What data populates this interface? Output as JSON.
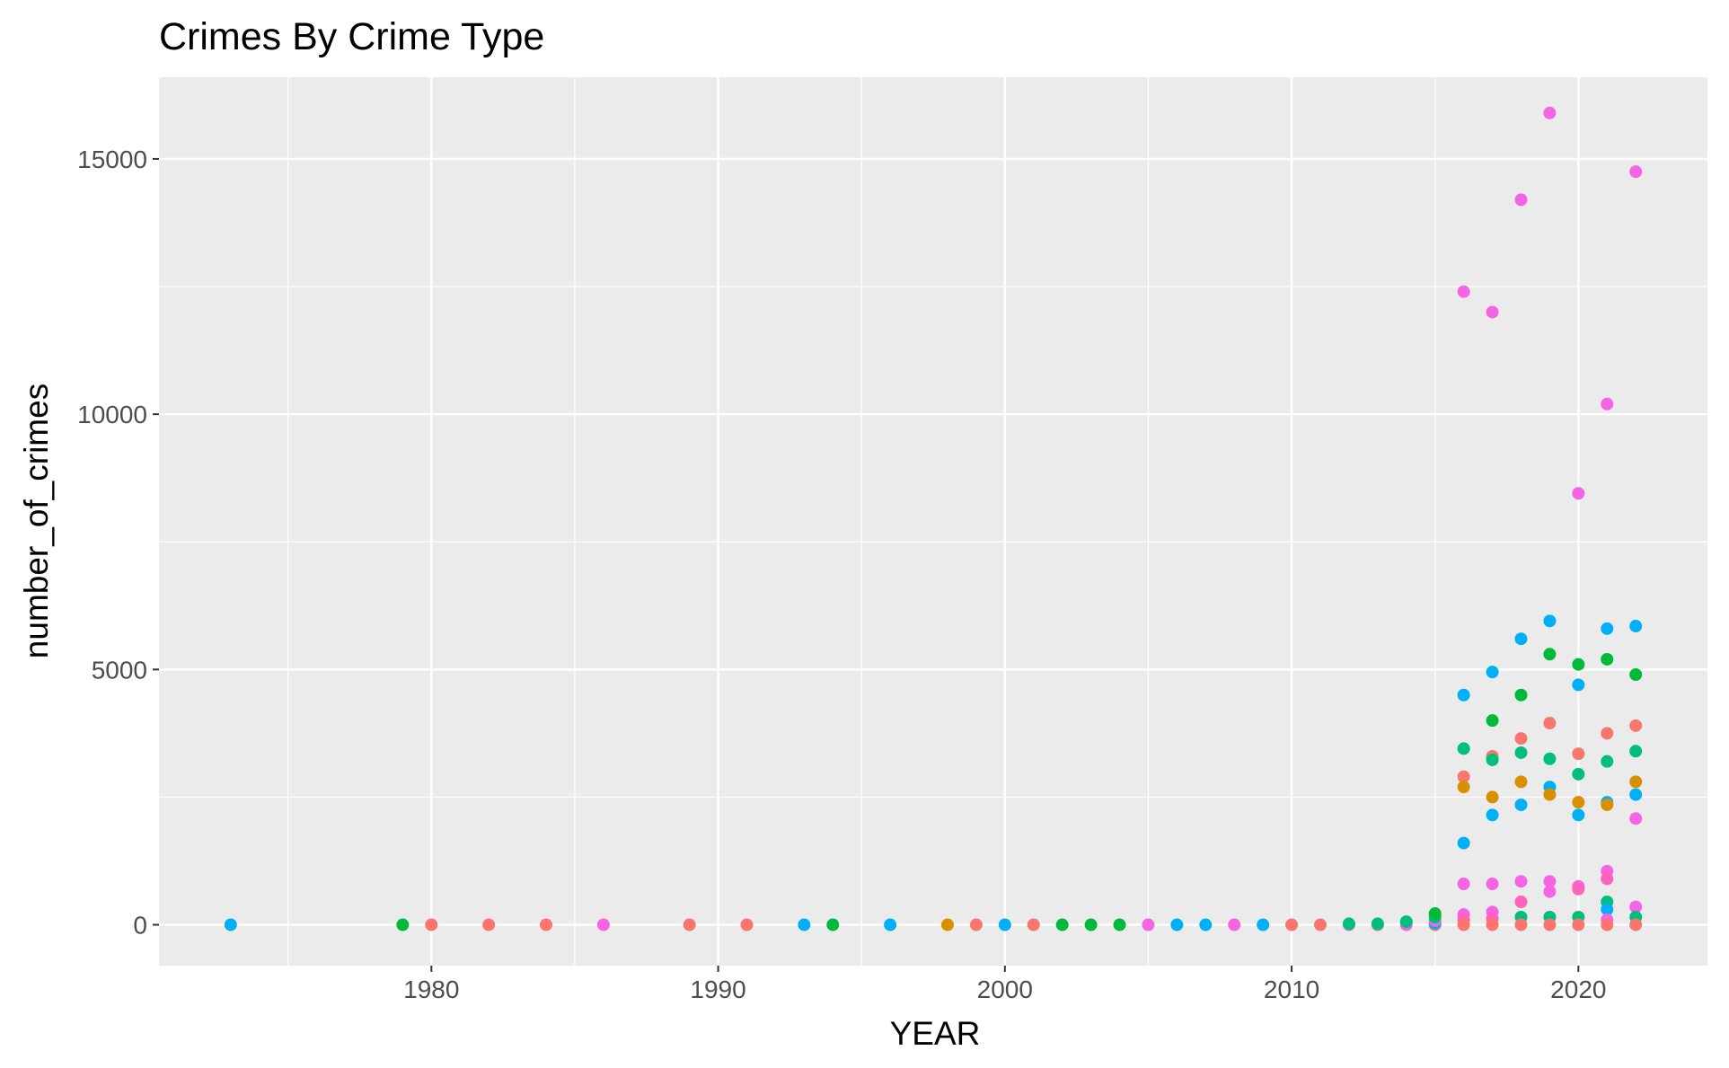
{
  "chart_data": {
    "type": "scatter",
    "title": "Crimes By Crime Type",
    "xlabel": "YEAR",
    "ylabel": "number_of_crimes",
    "xlim": [
      1970.5,
      2024.5
    ],
    "ylim": [
      -800,
      16600
    ],
    "x_ticks": [
      1980,
      1990,
      2000,
      2010,
      2020
    ],
    "y_ticks": [
      0,
      5000,
      10000,
      15000
    ],
    "grid": true,
    "legend": "none",
    "colors": {
      "panel": "#EBEBEB",
      "grid": "#FFFFFF",
      "c1": "#F8766D",
      "c2": "#D89000",
      "c3": "#00BA38",
      "c4": "#00BF7D",
      "c5": "#00B0F6",
      "c6": "#F564E3",
      "c7": "#FF62BC",
      "c8": "#E76BF3"
    },
    "points": [
      {
        "x": 1973,
        "y": 0,
        "color": "#00B0F6"
      },
      {
        "x": 1979,
        "y": 0,
        "color": "#00BA38"
      },
      {
        "x": 1980,
        "y": 0,
        "color": "#F8766D"
      },
      {
        "x": 1982,
        "y": 0,
        "color": "#F8766D"
      },
      {
        "x": 1984,
        "y": 0,
        "color": "#F8766D"
      },
      {
        "x": 1986,
        "y": 0,
        "color": "#F564E3"
      },
      {
        "x": 1989,
        "y": 0,
        "color": "#F8766D"
      },
      {
        "x": 1991,
        "y": 0,
        "color": "#F8766D"
      },
      {
        "x": 1993,
        "y": 0,
        "color": "#00B0F6"
      },
      {
        "x": 1994,
        "y": 0,
        "color": "#00BA38"
      },
      {
        "x": 1996,
        "y": 0,
        "color": "#00B0F6"
      },
      {
        "x": 1998,
        "y": 0,
        "color": "#D89000"
      },
      {
        "x": 1999,
        "y": 0,
        "color": "#F8766D"
      },
      {
        "x": 2000,
        "y": 0,
        "color": "#00B0F6"
      },
      {
        "x": 2001,
        "y": 0,
        "color": "#F8766D"
      },
      {
        "x": 2002,
        "y": 0,
        "color": "#00BA38"
      },
      {
        "x": 2003,
        "y": 0,
        "color": "#00BA38"
      },
      {
        "x": 2004,
        "y": 0,
        "color": "#00BA38"
      },
      {
        "x": 2005,
        "y": 0,
        "color": "#F564E3"
      },
      {
        "x": 2006,
        "y": 0,
        "color": "#00B0F6"
      },
      {
        "x": 2007,
        "y": 0,
        "color": "#00B0F6"
      },
      {
        "x": 2008,
        "y": 0,
        "color": "#F564E3"
      },
      {
        "x": 2009,
        "y": 0,
        "color": "#00B0F6"
      },
      {
        "x": 2010,
        "y": 0,
        "color": "#F8766D"
      },
      {
        "x": 2011,
        "y": 0,
        "color": "#F8766D"
      },
      {
        "x": 2012,
        "y": 0,
        "color": "#F564E3"
      },
      {
        "x": 2012,
        "y": 20,
        "color": "#00BF7D"
      },
      {
        "x": 2013,
        "y": 0,
        "color": "#F8766D"
      },
      {
        "x": 2013,
        "y": 20,
        "color": "#00BF7D"
      },
      {
        "x": 2014,
        "y": 0,
        "color": "#F564E3"
      },
      {
        "x": 2014,
        "y": 60,
        "color": "#00BF7D"
      },
      {
        "x": 2015,
        "y": 0,
        "color": "#F8766D"
      },
      {
        "x": 2015,
        "y": 30,
        "color": "#00B0F6"
      },
      {
        "x": 2015,
        "y": 80,
        "color": "#F564E3"
      },
      {
        "x": 2015,
        "y": 150,
        "color": "#00BF7D"
      },
      {
        "x": 2015,
        "y": 220,
        "color": "#00BA38"
      },
      {
        "x": 2016,
        "y": 12400,
        "color": "#F564E3"
      },
      {
        "x": 2016,
        "y": 4500,
        "color": "#00B0F6"
      },
      {
        "x": 2016,
        "y": 3450,
        "color": "#00BF7D"
      },
      {
        "x": 2016,
        "y": 2900,
        "color": "#F8766D"
      },
      {
        "x": 2016,
        "y": 2700,
        "color": "#D89000"
      },
      {
        "x": 2016,
        "y": 1600,
        "color": "#00B0F6"
      },
      {
        "x": 2016,
        "y": 800,
        "color": "#F564E3"
      },
      {
        "x": 2016,
        "y": 200,
        "color": "#F564E3"
      },
      {
        "x": 2016,
        "y": 100,
        "color": "#FF62BC"
      },
      {
        "x": 2016,
        "y": 0,
        "color": "#F8766D"
      },
      {
        "x": 2017,
        "y": 12000,
        "color": "#F564E3"
      },
      {
        "x": 2017,
        "y": 4950,
        "color": "#00B0F6"
      },
      {
        "x": 2017,
        "y": 4000,
        "color": "#00BA38"
      },
      {
        "x": 2017,
        "y": 3300,
        "color": "#F8766D"
      },
      {
        "x": 2017,
        "y": 3230,
        "color": "#00BF7D"
      },
      {
        "x": 2017,
        "y": 2500,
        "color": "#D89000"
      },
      {
        "x": 2017,
        "y": 2150,
        "color": "#00B0F6"
      },
      {
        "x": 2017,
        "y": 800,
        "color": "#F564E3"
      },
      {
        "x": 2017,
        "y": 250,
        "color": "#F564E3"
      },
      {
        "x": 2017,
        "y": 120,
        "color": "#FF62BC"
      },
      {
        "x": 2017,
        "y": 0,
        "color": "#F8766D"
      },
      {
        "x": 2018,
        "y": 14200,
        "color": "#F564E3"
      },
      {
        "x": 2018,
        "y": 5600,
        "color": "#00B0F6"
      },
      {
        "x": 2018,
        "y": 4500,
        "color": "#00BA38"
      },
      {
        "x": 2018,
        "y": 3650,
        "color": "#F8766D"
      },
      {
        "x": 2018,
        "y": 3370,
        "color": "#00BF7D"
      },
      {
        "x": 2018,
        "y": 2800,
        "color": "#D89000"
      },
      {
        "x": 2018,
        "y": 2350,
        "color": "#00B0F6"
      },
      {
        "x": 2018,
        "y": 850,
        "color": "#F564E3"
      },
      {
        "x": 2018,
        "y": 450,
        "color": "#FF62BC"
      },
      {
        "x": 2018,
        "y": 150,
        "color": "#00BF7D"
      },
      {
        "x": 2018,
        "y": 0,
        "color": "#F8766D"
      },
      {
        "x": 2019,
        "y": 15900,
        "color": "#F564E3"
      },
      {
        "x": 2019,
        "y": 5950,
        "color": "#00B0F6"
      },
      {
        "x": 2019,
        "y": 5300,
        "color": "#00BA38"
      },
      {
        "x": 2019,
        "y": 3950,
        "color": "#F8766D"
      },
      {
        "x": 2019,
        "y": 3250,
        "color": "#00BF7D"
      },
      {
        "x": 2019,
        "y": 2700,
        "color": "#00B0F6"
      },
      {
        "x": 2019,
        "y": 2550,
        "color": "#D89000"
      },
      {
        "x": 2019,
        "y": 850,
        "color": "#F564E3"
      },
      {
        "x": 2019,
        "y": 650,
        "color": "#F564E3"
      },
      {
        "x": 2019,
        "y": 150,
        "color": "#00BF7D"
      },
      {
        "x": 2019,
        "y": 0,
        "color": "#F8766D"
      },
      {
        "x": 2020,
        "y": 8450,
        "color": "#F564E3"
      },
      {
        "x": 2020,
        "y": 5100,
        "color": "#00BA38"
      },
      {
        "x": 2020,
        "y": 4700,
        "color": "#00B0F6"
      },
      {
        "x": 2020,
        "y": 3350,
        "color": "#F8766D"
      },
      {
        "x": 2020,
        "y": 2950,
        "color": "#00BF7D"
      },
      {
        "x": 2020,
        "y": 2400,
        "color": "#D89000"
      },
      {
        "x": 2020,
        "y": 2150,
        "color": "#00B0F6"
      },
      {
        "x": 2020,
        "y": 750,
        "color": "#F564E3"
      },
      {
        "x": 2020,
        "y": 700,
        "color": "#FF62BC"
      },
      {
        "x": 2020,
        "y": 150,
        "color": "#00BF7D"
      },
      {
        "x": 2020,
        "y": 0,
        "color": "#F8766D"
      },
      {
        "x": 2021,
        "y": 10200,
        "color": "#F564E3"
      },
      {
        "x": 2021,
        "y": 5800,
        "color": "#00B0F6"
      },
      {
        "x": 2021,
        "y": 5200,
        "color": "#00BA38"
      },
      {
        "x": 2021,
        "y": 3750,
        "color": "#F8766D"
      },
      {
        "x": 2021,
        "y": 3200,
        "color": "#00BF7D"
      },
      {
        "x": 2021,
        "y": 2400,
        "color": "#00B0F6"
      },
      {
        "x": 2021,
        "y": 2350,
        "color": "#D89000"
      },
      {
        "x": 2021,
        "y": 1050,
        "color": "#F564E3"
      },
      {
        "x": 2021,
        "y": 900,
        "color": "#FF62BC"
      },
      {
        "x": 2021,
        "y": 450,
        "color": "#00BF7D"
      },
      {
        "x": 2021,
        "y": 300,
        "color": "#00B0F6"
      },
      {
        "x": 2021,
        "y": 100,
        "color": "#F564E3"
      },
      {
        "x": 2021,
        "y": 0,
        "color": "#F8766D"
      },
      {
        "x": 2022,
        "y": 14750,
        "color": "#F564E3"
      },
      {
        "x": 2022,
        "y": 5850,
        "color": "#00B0F6"
      },
      {
        "x": 2022,
        "y": 4900,
        "color": "#00BA38"
      },
      {
        "x": 2022,
        "y": 3900,
        "color": "#F8766D"
      },
      {
        "x": 2022,
        "y": 3400,
        "color": "#00BF7D"
      },
      {
        "x": 2022,
        "y": 2800,
        "color": "#D89000"
      },
      {
        "x": 2022,
        "y": 2550,
        "color": "#00B0F6"
      },
      {
        "x": 2022,
        "y": 2080,
        "color": "#F564E3"
      },
      {
        "x": 2022,
        "y": 350,
        "color": "#F564E3"
      },
      {
        "x": 2022,
        "y": 150,
        "color": "#00BF7D"
      },
      {
        "x": 2022,
        "y": 0,
        "color": "#F8766D"
      }
    ]
  }
}
